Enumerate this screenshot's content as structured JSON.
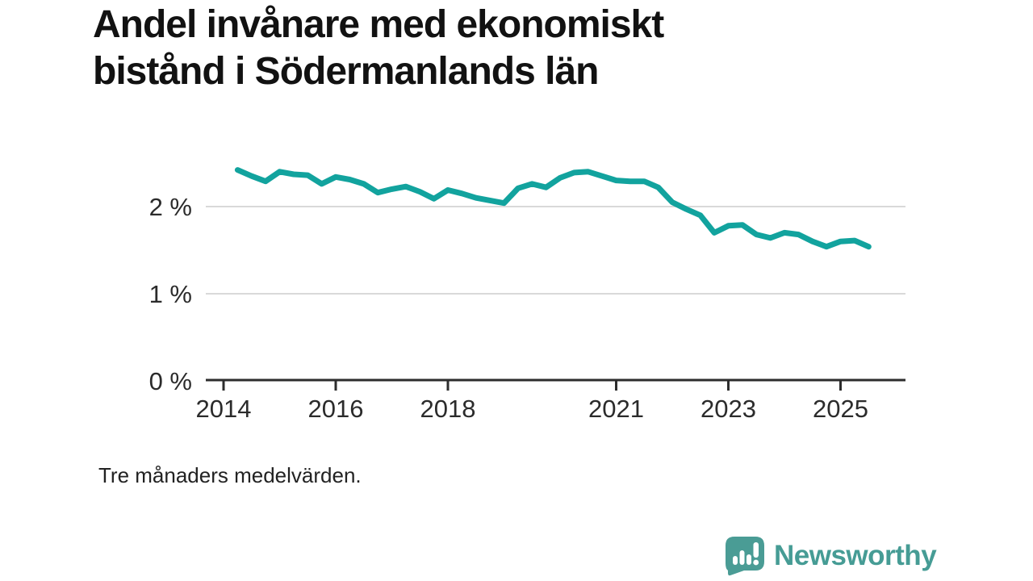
{
  "title": {
    "line1": "Andel invånare med ekonomiskt",
    "line2": "bistånd i Södermanlands län"
  },
  "footnote": "Tre månaders medelvärden.",
  "brand": {
    "name": "Newsworthy",
    "logo_icon": "bar-chart-badge-icon",
    "color": "#469c95",
    "icon_bg": "#4a9c95",
    "icon_fg": "#ffffff"
  },
  "colors": {
    "line": "#12a39e",
    "grid": "#d9d9d9",
    "axis": "#2d2d2d",
    "tick_text": "#2b2b2b"
  },
  "chart_data": {
    "type": "line",
    "title": "Andel invånare med ekonomiskt bistånd i Södermanlands län",
    "subtitle": "Tre månaders medelvärden.",
    "xlabel": "",
    "ylabel": "",
    "unit": "%",
    "grid": "horizontal",
    "legend": "none",
    "xlim": [
      2013.73,
      2026.16
    ],
    "ylim": [
      0,
      2.7
    ],
    "x_ticks": [
      {
        "label": "2014",
        "year": 2014
      },
      {
        "label": "2016",
        "year": 2016
      },
      {
        "label": "2018",
        "year": 2018
      },
      {
        "label": "2021",
        "year": 2021
      },
      {
        "label": "2023",
        "year": 2023
      },
      {
        "label": "2025",
        "year": 2025
      }
    ],
    "y_ticks": [
      {
        "label": "0 %",
        "value": 0
      },
      {
        "label": "1 %",
        "value": 1
      },
      {
        "label": "2 %",
        "value": 2
      }
    ],
    "series": [
      {
        "name": "Andel invånare med ekonomiskt bistånd",
        "color": "#12a39e",
        "x": [
          2014.25,
          2014.5,
          2014.75,
          2015.0,
          2015.25,
          2015.5,
          2015.75,
          2016.0,
          2016.25,
          2016.5,
          2016.75,
          2017.0,
          2017.25,
          2017.5,
          2017.75,
          2018.0,
          2018.25,
          2018.5,
          2018.75,
          2019.0,
          2019.25,
          2019.5,
          2019.75,
          2020.0,
          2020.25,
          2020.5,
          2020.75,
          2021.0,
          2021.25,
          2021.5,
          2021.75,
          2022.0,
          2022.25,
          2022.5,
          2022.75,
          2023.0,
          2023.25,
          2023.5,
          2023.75,
          2024.0,
          2024.25,
          2024.5,
          2024.75,
          2025.0,
          2025.25,
          2025.5
        ],
        "values": [
          2.42,
          2.35,
          2.29,
          2.4,
          2.37,
          2.36,
          2.26,
          2.34,
          2.31,
          2.26,
          2.16,
          2.2,
          2.23,
          2.17,
          2.09,
          2.19,
          2.15,
          2.1,
          2.07,
          2.04,
          2.21,
          2.26,
          2.22,
          2.33,
          2.39,
          2.4,
          2.35,
          2.3,
          2.29,
          2.29,
          2.22,
          2.05,
          1.97,
          1.9,
          1.7,
          1.78,
          1.79,
          1.68,
          1.64,
          1.7,
          1.68,
          1.6,
          1.54,
          1.6,
          1.61,
          1.54
        ]
      }
    ]
  }
}
